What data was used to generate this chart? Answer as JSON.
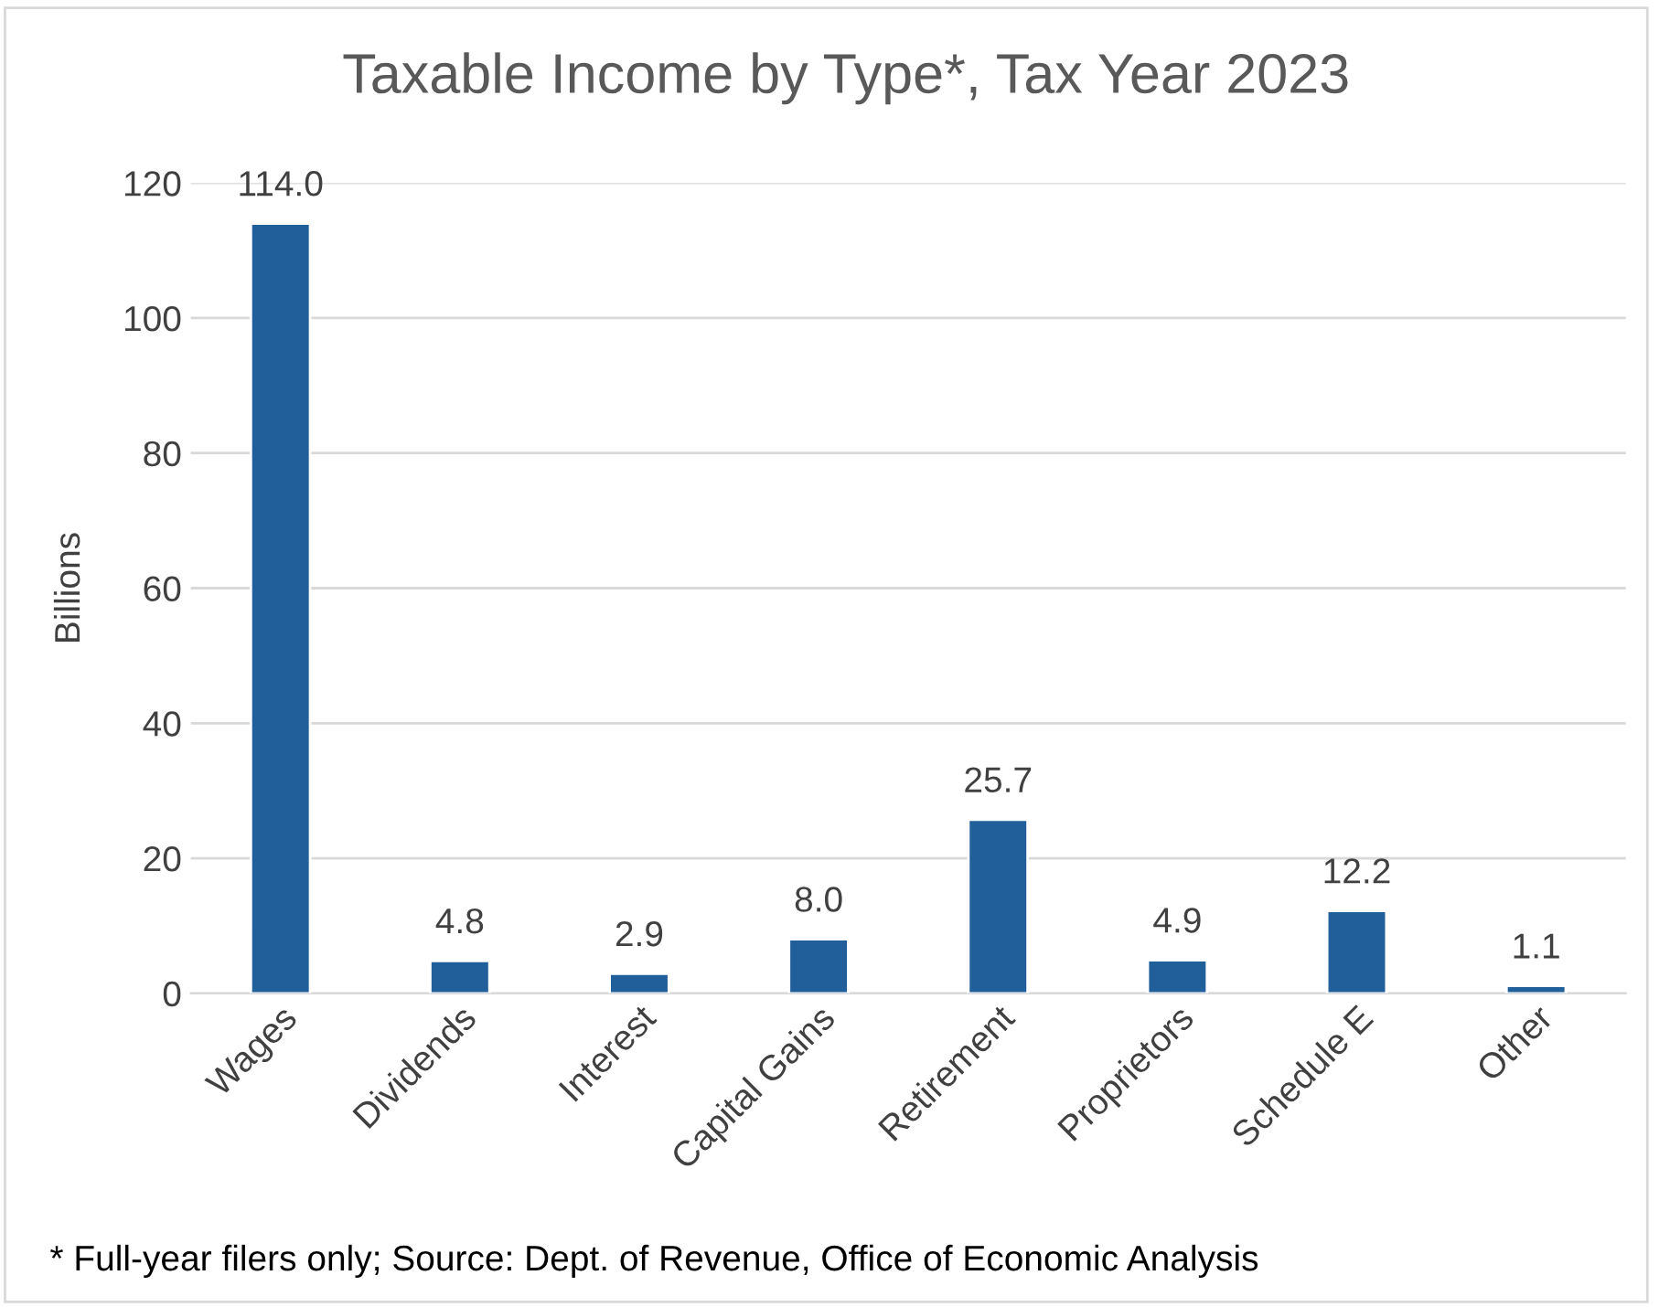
{
  "chart_data": {
    "type": "bar",
    "title": "Taxable Income by Type*, Tax Year 2023",
    "ylabel": "Billions",
    "categories": [
      "Wages",
      "Dividends",
      "Interest",
      "Capital Gains",
      "Retirement",
      "Proprietors",
      "Schedule E",
      "Other"
    ],
    "values": [
      114.0,
      4.8,
      2.9,
      8.0,
      25.7,
      4.9,
      12.2,
      1.1
    ],
    "value_labels": [
      "114.0",
      "4.8",
      "2.9",
      "8.0",
      "25.7",
      "4.9",
      "12.2",
      "1.1"
    ],
    "color": "#215f9a",
    "ylim": [
      0,
      120
    ],
    "yticks": [
      0,
      20,
      40,
      60,
      80,
      100,
      120
    ],
    "grid": "y",
    "legend": false,
    "annotations": [
      "* Full-year filers only; Source: Dept. of Revenue, Office of Economic Analysis"
    ]
  }
}
